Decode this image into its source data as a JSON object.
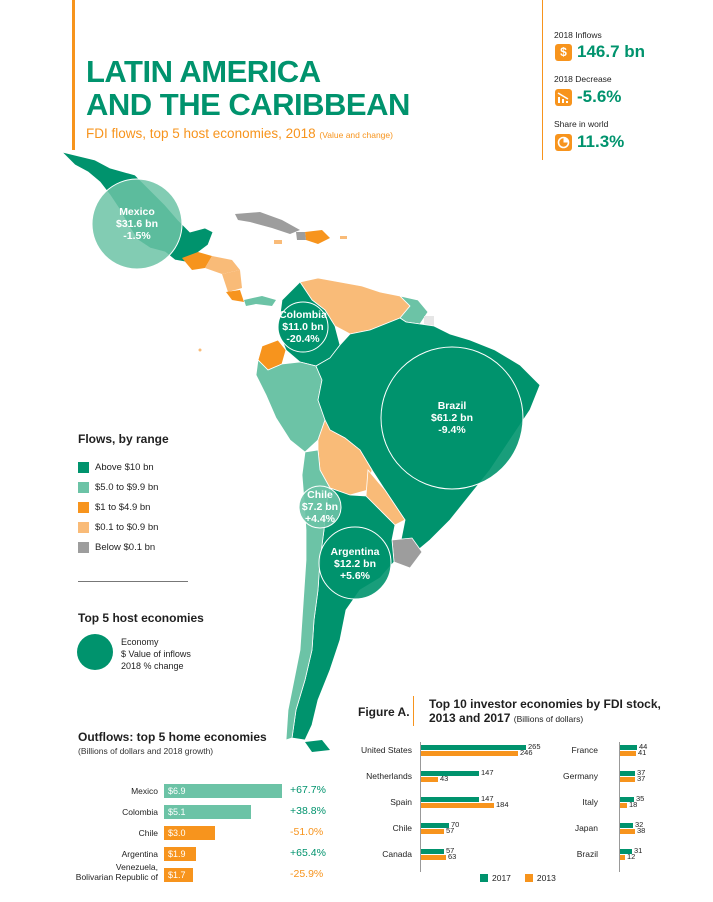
{
  "header": {
    "title_line1": "LATIN AMERICA",
    "title_line2": "AND THE CARIBBEAN",
    "subtitle": "FDI flows, top 5 host economies, 2018",
    "subtitle_note": "(Value and change)"
  },
  "stats": [
    {
      "label": "2018 Inflows",
      "value": "146.7 bn",
      "icon": "dollar-icon"
    },
    {
      "label": "2018 Decrease",
      "value": "-5.6%",
      "icon": "bar-decrease-icon"
    },
    {
      "label": "Share in world",
      "value": "11.3%",
      "icon": "pie-icon"
    }
  ],
  "colors": {
    "above10": "#00936d",
    "r5to9": "#6cc3a6",
    "r1to4": "#f7941d",
    "r01to09": "#f9bb78",
    "below01": "#9d9d9d",
    "orange": "#f7941d",
    "green": "#00936d"
  },
  "map": {
    "hosts": [
      {
        "name": "Mexico",
        "value": "$31.6 bn",
        "change": "-1.5%"
      },
      {
        "name": "Colombia",
        "value": "$11.0 bn",
        "change": "-20.4%"
      },
      {
        "name": "Brazil",
        "value": "$61.2 bn",
        "change": "-9.4%"
      },
      {
        "name": "Chile",
        "value": "$7.2 bn",
        "change": "+4.4%"
      },
      {
        "name": "Argentina",
        "value": "$12.2 bn",
        "change": "+5.6%"
      }
    ]
  },
  "legend": {
    "title": "Flows, by range",
    "items": [
      {
        "label": "Above $10 bn",
        "color": "#00936d"
      },
      {
        "label": "$5.0 to $9.9 bn",
        "color": "#6cc3a6"
      },
      {
        "label": "$1 to $4.9 bn",
        "color": "#f7941d"
      },
      {
        "label": "$0.1 to $0.9 bn",
        "color": "#f9bb78"
      },
      {
        "label": "Below $0.1 bn",
        "color": "#9d9d9d"
      }
    ]
  },
  "top5_key": {
    "title": "Top 5 host economies",
    "line1": "Economy",
    "line2": "$ Value of inflows",
    "line3": "2018 % change"
  },
  "chart_data": [
    {
      "type": "bar",
      "title": "Outflows: top 5 home economies",
      "subtitle": "(Billions of dollars and 2018 growth)",
      "categories": [
        "Mexico",
        "Colombia",
        "Chile",
        "Argentina",
        "Venezuela, Bolivarian Republic of"
      ],
      "values": [
        6.9,
        5.1,
        3.0,
        1.9,
        1.7
      ],
      "value_labels": [
        "$6.9",
        "$5.1",
        "$3.0",
        "$1.9",
        "$1.7"
      ],
      "growth": [
        "+67.7%",
        "+38.8%",
        "-51.0%",
        "+65.4%",
        "-25.9%"
      ],
      "bar_colors": [
        "#6cc3a6",
        "#6cc3a6",
        "#f7941d",
        "#f7941d",
        "#f7941d"
      ]
    },
    {
      "type": "bar",
      "figure_label": "Figure A.",
      "title": "Top 10 investor economies by FDI stock, 2013 and 2017",
      "units": "(Billions of dollars)",
      "categories": [
        "United States",
        "Netherlands",
        "Spain",
        "Chile",
        "Canada",
        "France",
        "Germany",
        "Italy",
        "Japan",
        "Brazil"
      ],
      "series": [
        {
          "name": "2017",
          "values": [
            265,
            147,
            147,
            70,
            57,
            44,
            37,
            35,
            32,
            31
          ],
          "color": "#00936d"
        },
        {
          "name": "2013",
          "values": [
            246,
            43,
            184,
            57,
            63,
            41,
            37,
            18,
            38,
            12
          ],
          "color": "#f7941d"
        }
      ]
    }
  ]
}
